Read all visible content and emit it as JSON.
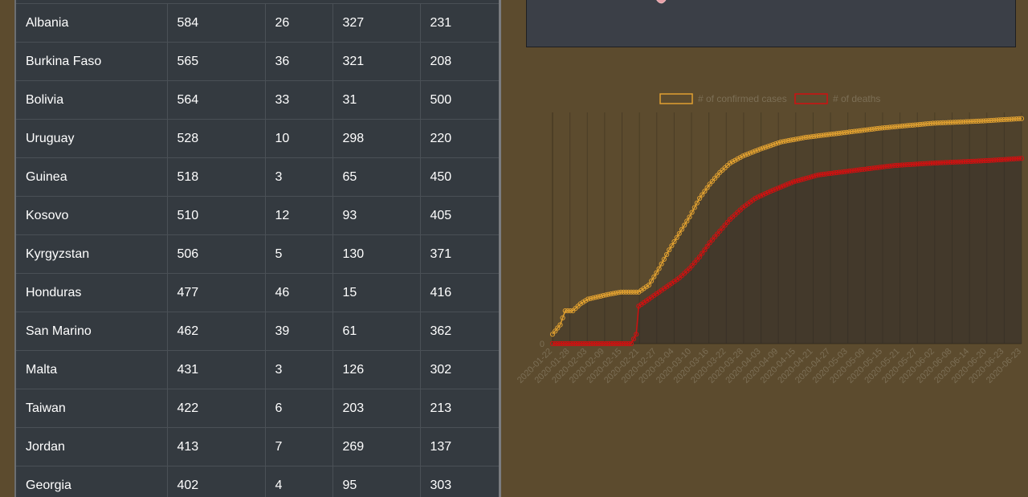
{
  "table": {
    "rows": [
      [
        "Albania",
        "584",
        "26",
        "327",
        "231"
      ],
      [
        "Burkina Faso",
        "565",
        "36",
        "321",
        "208"
      ],
      [
        "Bolivia",
        "564",
        "33",
        "31",
        "500"
      ],
      [
        "Uruguay",
        "528",
        "10",
        "298",
        "220"
      ],
      [
        "Guinea",
        "518",
        "3",
        "65",
        "450"
      ],
      [
        "Kosovo",
        "510",
        "12",
        "93",
        "405"
      ],
      [
        "Kyrgyzstan",
        "506",
        "5",
        "130",
        "371"
      ],
      [
        "Honduras",
        "477",
        "46",
        "15",
        "416"
      ],
      [
        "San Marino",
        "462",
        "39",
        "61",
        "362"
      ],
      [
        "Malta",
        "431",
        "3",
        "126",
        "302"
      ],
      [
        "Taiwan",
        "422",
        "6",
        "203",
        "213"
      ],
      [
        "Jordan",
        "413",
        "7",
        "269",
        "137"
      ],
      [
        "Georgia",
        "402",
        "4",
        "95",
        "303"
      ]
    ]
  },
  "colors": {
    "confirmed": "#e0a030",
    "deaths": "#d01010"
  },
  "chart_data": {
    "type": "line",
    "legend": [
      "# of confirmed cases",
      "# of deaths"
    ],
    "legend_position": "top",
    "y_tick_labels": [
      "0"
    ],
    "x_tick_labels": [
      "2020-01-22",
      "2020-01-28",
      "2020-02-03",
      "2020-02-09",
      "2020-02-15",
      "2020-02-21",
      "2020-02-27",
      "2020-03-04",
      "2020-03-10",
      "2020-03-16",
      "2020-03-22",
      "2020-03-28",
      "2020-04-03",
      "2020-04-09",
      "2020-04-15",
      "2020-04-21",
      "2020-04-27",
      "2020-05-03",
      "2020-05-09",
      "2020-05-15",
      "2020-05-21",
      "2020-05-27",
      "2020-06-02",
      "2020-06-08",
      "2020-06-14",
      "2020-06-20",
      "2020-06-23",
      "2020-06-23"
    ],
    "series_shape": {
      "confirmed": [
        [
          0,
          0.04
        ],
        [
          3,
          0.08
        ],
        [
          5,
          0.14
        ],
        [
          8,
          0.14
        ],
        [
          11,
          0.17
        ],
        [
          14,
          0.19
        ],
        [
          18,
          0.2
        ],
        [
          22,
          0.21
        ],
        [
          27,
          0.22
        ],
        [
          30,
          0.22
        ],
        [
          34,
          0.22
        ],
        [
          38,
          0.25
        ],
        [
          42,
          0.32
        ],
        [
          46,
          0.4
        ],
        [
          50,
          0.47
        ],
        [
          54,
          0.54
        ],
        [
          58,
          0.62
        ],
        [
          62,
          0.68
        ],
        [
          66,
          0.73
        ],
        [
          70,
          0.77
        ],
        [
          75,
          0.8
        ],
        [
          82,
          0.83
        ],
        [
          90,
          0.86
        ],
        [
          100,
          0.88
        ],
        [
          115,
          0.9
        ],
        [
          130,
          0.92
        ],
        [
          150,
          0.94
        ],
        [
          170,
          0.95
        ],
        [
          185,
          0.96
        ]
      ],
      "deaths": [
        [
          0,
          0
        ],
        [
          28,
          0
        ],
        [
          31,
          0
        ],
        [
          33,
          0.04
        ],
        [
          34,
          0.16
        ],
        [
          38,
          0.19
        ],
        [
          42,
          0.22
        ],
        [
          46,
          0.25
        ],
        [
          50,
          0.28
        ],
        [
          54,
          0.32
        ],
        [
          58,
          0.37
        ],
        [
          62,
          0.43
        ],
        [
          66,
          0.48
        ],
        [
          70,
          0.53
        ],
        [
          75,
          0.58
        ],
        [
          80,
          0.62
        ],
        [
          86,
          0.65
        ],
        [
          95,
          0.69
        ],
        [
          105,
          0.72
        ],
        [
          120,
          0.74
        ],
        [
          135,
          0.76
        ],
        [
          150,
          0.77
        ],
        [
          170,
          0.78
        ],
        [
          185,
          0.79
        ]
      ]
    }
  }
}
